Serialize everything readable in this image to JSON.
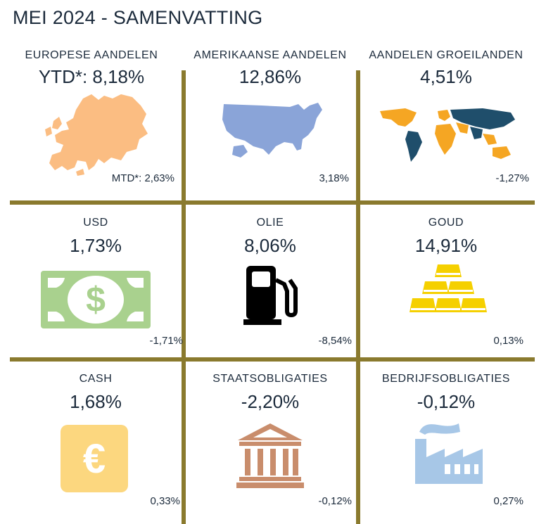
{
  "title": "MEI 2024 - SAMENVATTING",
  "tiles": [
    {
      "label": "EUROPESE AANDELEN",
      "value": "YTD*: 8,18%",
      "sub": "MTD*: 2,63%",
      "icon": "europe-map-icon",
      "color": "#fbbd82"
    },
    {
      "label": "AMERIKAANSE AANDELEN",
      "value": "12,86%",
      "sub": "3,18%",
      "icon": "usa-map-icon",
      "color": "#8aa4d8"
    },
    {
      "label": "AANDELEN GROEILANDEN",
      "value": "4,51%",
      "sub": "-1,27%",
      "icon": "world-map-icon",
      "color": "#f5a623"
    },
    {
      "label": "USD",
      "value": "1,73%",
      "sub": "-1,71%",
      "icon": "dollar-bill-icon",
      "color": "#a9d18e"
    },
    {
      "label": "OLIE",
      "value": "8,06%",
      "sub": "-8,54%",
      "icon": "fuel-pump-icon",
      "color": "#000000"
    },
    {
      "label": "GOUD",
      "value": "14,91%",
      "sub": "0,13%",
      "icon": "gold-bars-icon",
      "color": "#f5d000"
    },
    {
      "label": "CASH",
      "value": "1,68%",
      "sub": "0,33%",
      "icon": "euro-icon",
      "color": "#fcd77f"
    },
    {
      "label": "STAATSOBLIGATIES",
      "value": "-2,20%",
      "sub": "-0,12%",
      "icon": "government-building-icon",
      "color": "#c98d6c"
    },
    {
      "label": "BEDRIJFSOBLIGATIES",
      "value": "-0,12%",
      "sub": "0,27%",
      "icon": "factory-icon",
      "color": "#a7c7e7"
    }
  ]
}
